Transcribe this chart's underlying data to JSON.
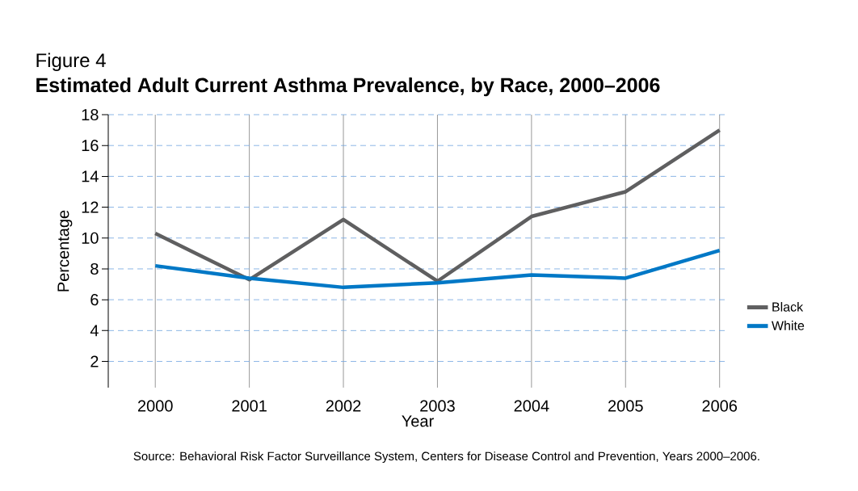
{
  "chart_data": {
    "type": "line",
    "title": "Estimated Adult Current Asthma Prevalence, by Race, 2000–2006",
    "subtitle": "Figure 4",
    "xlabel": "Year",
    "ylabel": "Percentage",
    "categories": [
      "2000",
      "2001",
      "2002",
      "2003",
      "2004",
      "2005",
      "2006"
    ],
    "series": [
      {
        "name": "Black",
        "color": "#5f5f60",
        "values": [
          10.3,
          7.3,
          11.2,
          7.2,
          11.4,
          13.0,
          17.0
        ]
      },
      {
        "name": "White",
        "color": "#0078c6",
        "values": [
          8.2,
          7.4,
          6.8,
          7.1,
          7.6,
          7.4,
          9.2
        ]
      }
    ],
    "ylim": [
      0.3,
      18
    ],
    "yticks": [
      2,
      4,
      6,
      8,
      10,
      12,
      14,
      16,
      18
    ],
    "grid": true,
    "legend": "right",
    "marker": "none",
    "line_style": "solid",
    "annotations": [
      "Source: Behavioral Risk Factor Surveillance System, Centers for Disease Control and Prevention, Years 2000–2006."
    ]
  }
}
